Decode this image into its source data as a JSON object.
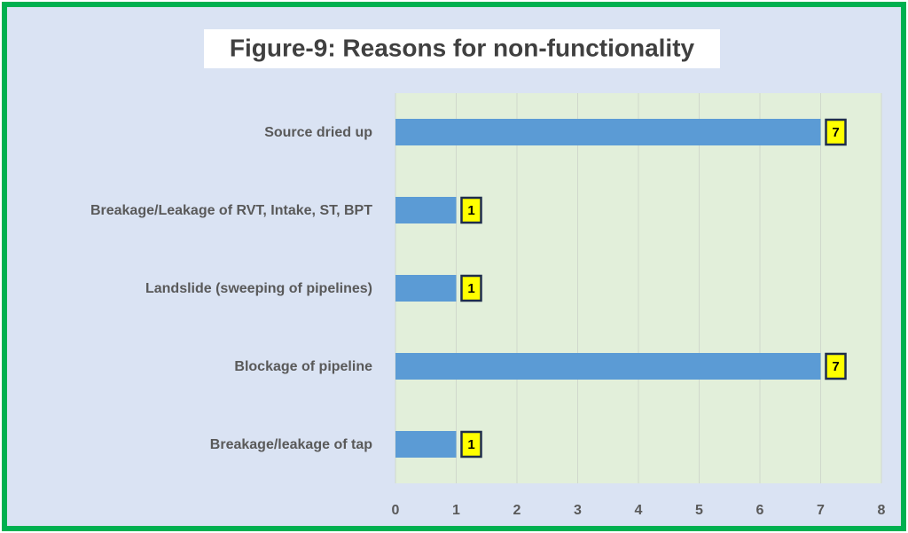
{
  "chart_data": {
    "type": "bar",
    "orientation": "horizontal",
    "title": "Figure-9: Reasons for non-functionality",
    "categories": [
      "Source dried up",
      "Breakage/Leakage of RVT, Intake, ST, BPT",
      "Landslide (sweeping of pipelines)",
      "Blockage of pipeline",
      "Breakage/leakage of tap"
    ],
    "values": [
      7,
      1,
      1,
      7,
      1
    ],
    "color": "#5b9bd5",
    "xlim": [
      0,
      8
    ],
    "xticks": [
      0,
      1,
      2,
      3,
      4,
      5,
      6,
      7,
      8
    ],
    "grid": true,
    "data_labels": true
  }
}
